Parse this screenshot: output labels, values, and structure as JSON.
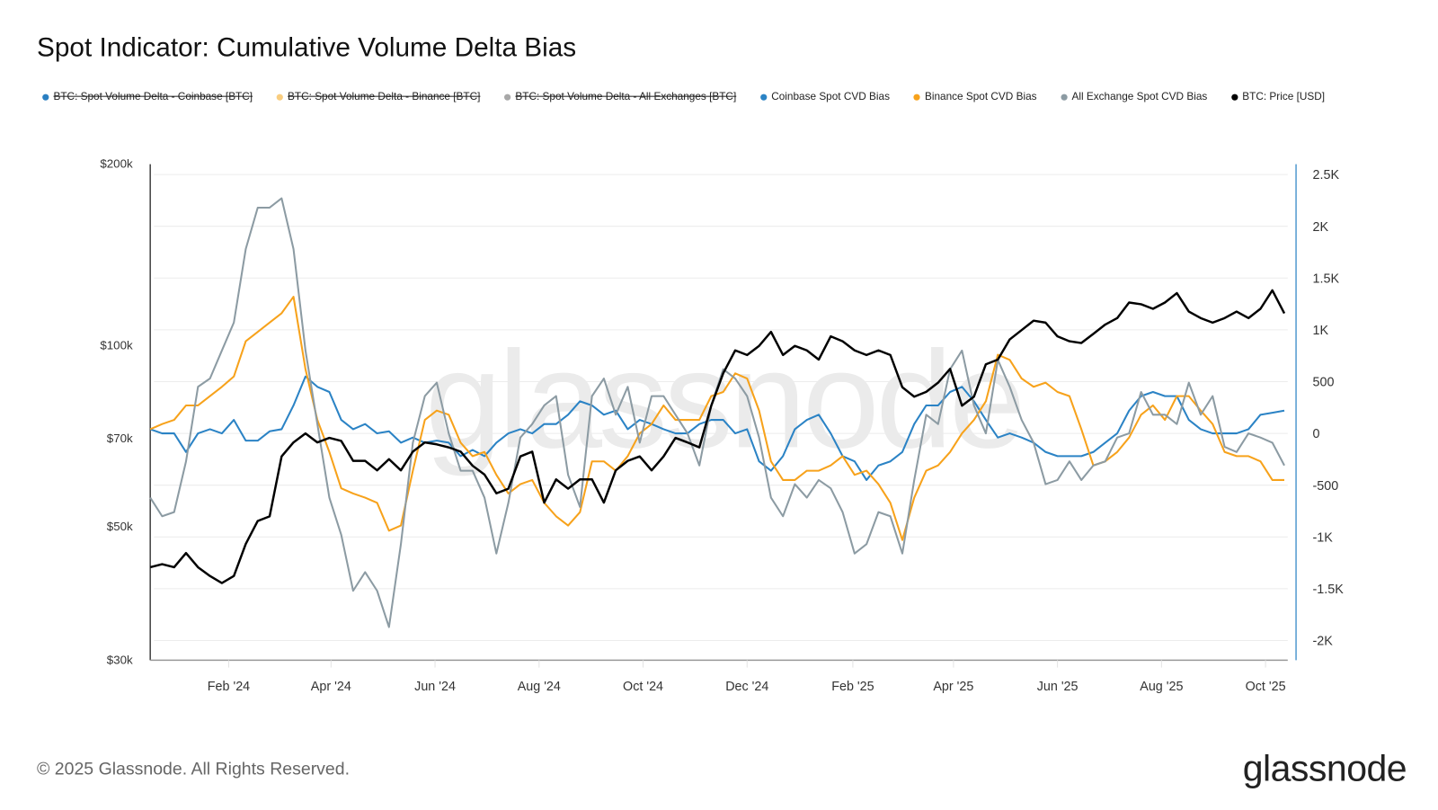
{
  "title": "Spot Indicator: Cumulative Volume Delta Bias",
  "legend": [
    {
      "label": "BTC: Spot Volume Delta - Coinbase [BTC]",
      "color": "#2a7fc1",
      "hidden": true
    },
    {
      "label": "BTC: Spot Volume Delta - Binance [BTC]",
      "color": "#f9cd7f",
      "hidden": true
    },
    {
      "label": "BTC: Spot Volume Delta - All Exchanges [BTC]",
      "color": "#a8a8a8",
      "hidden": true
    },
    {
      "label": "Coinbase Spot CVD Bias",
      "color": "#2b83c5",
      "hidden": false
    },
    {
      "label": "Binance Spot CVD Bias",
      "color": "#f7a21b",
      "hidden": false
    },
    {
      "label": "All Exchange Spot CVD Bias",
      "color": "#8c9ba3",
      "hidden": false
    },
    {
      "label": "BTC: Price [USD]",
      "color": "#000000",
      "hidden": false
    }
  ],
  "footer": "© 2025 Glassnode. All Rights Reserved.",
  "logo_text": "glassnode",
  "watermark": "glassnode",
  "chart_data": {
    "type": "line",
    "title": "Spot Indicator: Cumulative Volume Delta Bias",
    "grid": true,
    "legend_position": "top",
    "x_ticks": [
      {
        "date": "2024-02-01",
        "label": "Feb '24"
      },
      {
        "date": "2024-04-01",
        "label": "Apr '24"
      },
      {
        "date": "2024-06-01",
        "label": "Jun '24"
      },
      {
        "date": "2024-08-01",
        "label": "Aug '24"
      },
      {
        "date": "2024-10-01",
        "label": "Oct '24"
      },
      {
        "date": "2024-12-01",
        "label": "Dec '24"
      },
      {
        "date": "2025-02-01",
        "label": "Feb '25"
      },
      {
        "date": "2025-04-01",
        "label": "Apr '25"
      },
      {
        "date": "2025-06-01",
        "label": "Jun '25"
      },
      {
        "date": "2025-08-01",
        "label": "Aug '25"
      },
      {
        "date": "2025-10-01",
        "label": "Oct '25"
      }
    ],
    "y_left": {
      "scale": "log",
      "range": [
        30000,
        200000
      ],
      "ticks": [
        {
          "value": 200000,
          "label": "$200k"
        },
        {
          "value": 100000,
          "label": "$100k"
        },
        {
          "value": 70000,
          "label": "$70k"
        },
        {
          "value": 50000,
          "label": "$50k"
        },
        {
          "value": 30000,
          "label": "$30k"
        }
      ]
    },
    "y_right": {
      "scale": "linear",
      "range": [
        -2190,
        2600
      ],
      "ticks": [
        {
          "value": 2500,
          "label": "2.5K"
        },
        {
          "value": 2000,
          "label": "2K"
        },
        {
          "value": 1500,
          "label": "1.5K"
        },
        {
          "value": 1000,
          "label": "1K"
        },
        {
          "value": 500,
          "label": "500"
        },
        {
          "value": 0,
          "label": "0"
        },
        {
          "value": -500,
          "label": "-500"
        },
        {
          "value": -1000,
          "label": "-1K"
        },
        {
          "value": -1500,
          "label": "-1.5K"
        },
        {
          "value": -2000,
          "label": "-2K"
        }
      ]
    },
    "dates": [
      "2023-12-17",
      "2023-12-24",
      "2023-12-31",
      "2024-01-07",
      "2024-01-14",
      "2024-01-21",
      "2024-01-28",
      "2024-02-04",
      "2024-02-11",
      "2024-02-18",
      "2024-02-25",
      "2024-03-03",
      "2024-03-10",
      "2024-03-17",
      "2024-03-24",
      "2024-03-31",
      "2024-04-07",
      "2024-04-14",
      "2024-04-21",
      "2024-04-28",
      "2024-05-05",
      "2024-05-12",
      "2024-05-19",
      "2024-05-26",
      "2024-06-02",
      "2024-06-09",
      "2024-06-16",
      "2024-06-23",
      "2024-06-30",
      "2024-07-07",
      "2024-07-14",
      "2024-07-21",
      "2024-07-28",
      "2024-08-04",
      "2024-08-11",
      "2024-08-18",
      "2024-08-25",
      "2024-09-01",
      "2024-09-08",
      "2024-09-15",
      "2024-09-22",
      "2024-09-29",
      "2024-10-06",
      "2024-10-13",
      "2024-10-20",
      "2024-10-27",
      "2024-11-03",
      "2024-11-10",
      "2024-11-17",
      "2024-11-24",
      "2024-12-01",
      "2024-12-08",
      "2024-12-15",
      "2024-12-22",
      "2024-12-29",
      "2025-01-05",
      "2025-01-12",
      "2025-01-19",
      "2025-01-26",
      "2025-02-02",
      "2025-02-09",
      "2025-02-16",
      "2025-02-23",
      "2025-03-02",
      "2025-03-09",
      "2025-03-16",
      "2025-03-23",
      "2025-03-30",
      "2025-04-06",
      "2025-04-13",
      "2025-04-20",
      "2025-04-27",
      "2025-05-04",
      "2025-05-11",
      "2025-05-18",
      "2025-05-25",
      "2025-06-01",
      "2025-06-08",
      "2025-06-15",
      "2025-06-22",
      "2025-06-29",
      "2025-07-06",
      "2025-07-13",
      "2025-07-20",
      "2025-07-27",
      "2025-08-03",
      "2025-08-10",
      "2025-08-17",
      "2025-08-24",
      "2025-08-31",
      "2025-09-07",
      "2025-09-14",
      "2025-09-21",
      "2025-09-28",
      "2025-10-05",
      "2025-10-12"
    ],
    "series": [
      {
        "name": "Coinbase Spot CVD Bias",
        "axis": "right",
        "color": "#2b83c5",
        "values": [
          40,
          0,
          0,
          -180,
          0,
          40,
          0,
          130,
          -70,
          -70,
          20,
          40,
          270,
          550,
          450,
          400,
          130,
          40,
          90,
          0,
          20,
          -90,
          -40,
          -90,
          -70,
          -90,
          -220,
          -160,
          -220,
          -90,
          0,
          40,
          0,
          90,
          90,
          180,
          310,
          270,
          180,
          220,
          40,
          130,
          90,
          40,
          0,
          0,
          90,
          130,
          130,
          0,
          40,
          -270,
          -360,
          -220,
          40,
          130,
          180,
          0,
          -220,
          -270,
          -450,
          -310,
          -270,
          -180,
          90,
          270,
          270,
          400,
          450,
          310,
          130,
          -40,
          0,
          -40,
          -90,
          -180,
          -220,
          -220,
          -220,
          -180,
          -90,
          0,
          220,
          360,
          400,
          360,
          360,
          130,
          40,
          0,
          0,
          0,
          40,
          180,
          200,
          220
        ]
      },
      {
        "name": "Binance Spot CVD Bias",
        "axis": "right",
        "color": "#f7a21b",
        "values": [
          40,
          90,
          130,
          270,
          270,
          360,
          450,
          550,
          890,
          980,
          1070,
          1160,
          1320,
          620,
          130,
          -180,
          -530,
          -580,
          -620,
          -670,
          -940,
          -890,
          -360,
          130,
          220,
          180,
          -90,
          -220,
          -180,
          -400,
          -580,
          -490,
          -450,
          -670,
          -800,
          -890,
          -760,
          -270,
          -270,
          -360,
          -220,
          0,
          90,
          270,
          130,
          130,
          130,
          360,
          400,
          580,
          530,
          220,
          -270,
          -450,
          -450,
          -360,
          -360,
          -310,
          -220,
          -400,
          -360,
          -490,
          -670,
          -1030,
          -620,
          -360,
          -310,
          -180,
          0,
          130,
          310,
          760,
          710,
          530,
          450,
          490,
          400,
          360,
          40,
          -310,
          -270,
          -180,
          -40,
          180,
          270,
          130,
          360,
          360,
          220,
          90,
          -180,
          -220,
          -220,
          -270,
          -450,
          -450
        ]
      },
      {
        "name": "All Exchange Spot CVD Bias",
        "axis": "right",
        "color": "#8c9ba3",
        "values": [
          -620,
          -800,
          -760,
          -270,
          450,
          530,
          800,
          1070,
          1780,
          2180,
          2180,
          2270,
          1780,
          800,
          90,
          -620,
          -980,
          -1520,
          -1340,
          -1520,
          -1870,
          -1070,
          -90,
          360,
          490,
          0,
          -360,
          -360,
          -620,
          -1160,
          -670,
          -40,
          90,
          270,
          360,
          -400,
          -710,
          360,
          530,
          180,
          450,
          -90,
          360,
          360,
          180,
          0,
          -310,
          270,
          620,
          530,
          360,
          -40,
          -620,
          -800,
          -490,
          -620,
          -450,
          -530,
          -760,
          -1160,
          -1070,
          -760,
          -800,
          -1160,
          -450,
          180,
          90,
          620,
          800,
          270,
          0,
          710,
          450,
          130,
          -90,
          -490,
          -450,
          -270,
          -450,
          -310,
          -270,
          -40,
          0,
          400,
          180,
          180,
          90,
          490,
          180,
          360,
          -130,
          -180,
          0,
          -40,
          -90,
          -310
        ]
      },
      {
        "name": "BTC: Price [USD]",
        "axis": "left",
        "color": "#000000",
        "values": [
          42800,
          43300,
          42800,
          45200,
          42800,
          41400,
          40300,
          41400,
          46800,
          51100,
          52000,
          65400,
          69000,
          71400,
          69000,
          70200,
          69400,
          64300,
          64300,
          62000,
          64700,
          62000,
          66600,
          69000,
          68500,
          67700,
          66600,
          63100,
          61000,
          56800,
          57800,
          65400,
          66600,
          54800,
          59900,
          57800,
          59900,
          59900,
          54800,
          62000,
          64300,
          65400,
          62000,
          65400,
          70200,
          69000,
          67700,
          79400,
          89900,
          98100,
          96400,
          99800,
          105300,
          96400,
          99800,
          98100,
          94700,
          103500,
          101600,
          98100,
          96400,
          98100,
          96400,
          85200,
          82200,
          83700,
          86700,
          91400,
          79400,
          82200,
          93000,
          94700,
          102300,
          106000,
          109900,
          109100,
          103500,
          101600,
          100900,
          104500,
          108300,
          111000,
          117800,
          117000,
          115000,
          117800,
          122100,
          113800,
          111000,
          109100,
          111000,
          113800,
          111000,
          115000,
          123400,
          113000
        ]
      }
    ]
  }
}
